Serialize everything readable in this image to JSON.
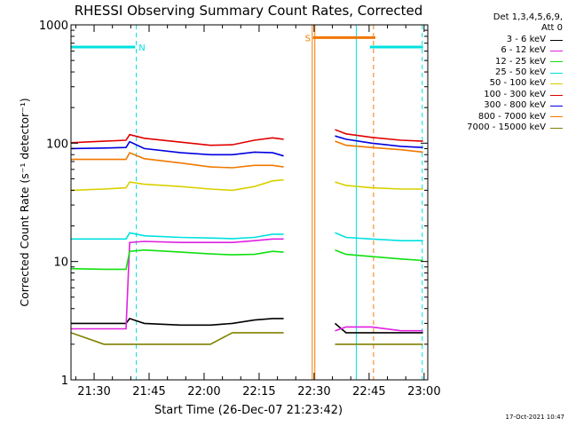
{
  "chart_data": {
    "type": "line",
    "title": "RHESSI Observing Summary Count Rates, Corrected",
    "xlabel": "Start Time (26-Dec-07 21:23:42)",
    "ylabel": "Corrected Count Rate (s⁻¹ detector⁻¹)",
    "yscale": "log",
    "ylim": [
      1,
      1000
    ],
    "xlim": [
      "21:23:42",
      "23:01:00"
    ],
    "x_ticks": [
      "21:30",
      "21:45",
      "22:00",
      "22:15",
      "22:30",
      "22:45",
      "23:00"
    ],
    "y_ticks": [
      "1",
      "10",
      "100",
      "1000"
    ],
    "grid": false,
    "legend_position": "right",
    "legend_header": [
      "Det 1,3,4,5,6,9,",
      "Att 0"
    ],
    "x_minutes": [
      0,
      9,
      15,
      16,
      20,
      30,
      38,
      44,
      50,
      55,
      58,
      67,
      71,
      72,
      75,
      82,
      90,
      96
    ],
    "series": [
      {
        "name": "3 - 6 keV",
        "color": "#000000",
        "values": [
          3.0,
          3.0,
          3.0,
          3.3,
          3.0,
          2.9,
          2.9,
          3.0,
          3.2,
          3.3,
          3.3,
          null,
          null,
          3.0,
          2.5,
          2.5,
          2.5,
          2.5
        ]
      },
      {
        "name": "6 - 12 keV",
        "color": "#e020e0",
        "values": [
          2.7,
          2.7,
          2.7,
          14.5,
          14.8,
          14.5,
          14.5,
          14.5,
          15.0,
          15.5,
          15.5,
          null,
          null,
          2.6,
          2.8,
          2.8,
          2.6,
          2.6
        ]
      },
      {
        "name": "12 - 25 keV",
        "color": "#10e010",
        "values": [
          8.7,
          8.6,
          8.6,
          12.2,
          12.5,
          12.0,
          11.6,
          11.4,
          11.5,
          12.2,
          12.0,
          null,
          null,
          12.5,
          11.5,
          11.0,
          10.5,
          10.2
        ]
      },
      {
        "name": "25 - 50 keV",
        "color": "#00e0e0",
        "values": [
          15.5,
          15.5,
          15.5,
          17.5,
          16.5,
          16.0,
          15.8,
          15.6,
          16.0,
          17.0,
          17.0,
          null,
          null,
          17.5,
          16.0,
          15.5,
          15.0,
          15.0
        ]
      },
      {
        "name": "50 - 100 keV",
        "color": "#d8d000",
        "values": [
          40,
          41,
          42,
          47,
          45,
          43,
          41,
          40,
          43,
          48,
          49,
          null,
          null,
          47,
          44,
          42,
          41,
          41
        ]
      },
      {
        "name": "100 - 300 keV",
        "color": "#e00000",
        "values": [
          101,
          104,
          106,
          118,
          110,
          102,
          96,
          97,
          106,
          111,
          108,
          null,
          null,
          130,
          120,
          112,
          106,
          104
        ]
      },
      {
        "name": "300 - 800 keV",
        "color": "#0000e0",
        "values": [
          90,
          91,
          92,
          103,
          90,
          83,
          80,
          80,
          84,
          83,
          78,
          null,
          null,
          115,
          108,
          100,
          94,
          92
        ]
      },
      {
        "name": "800 - 7000 keV",
        "color": "#f07800",
        "values": [
          73,
          73,
          73,
          83,
          74,
          68,
          63,
          62,
          65,
          65,
          63,
          null,
          null,
          104,
          96,
          92,
          88,
          84
        ]
      },
      {
        "name": "7000 - 15000 keV",
        "color": "#808000",
        "values": [
          2.5,
          2.0,
          2.0,
          2.0,
          2.0,
          2.0,
          2.0,
          2.5,
          2.5,
          2.5,
          2.5,
          null,
          null,
          2.0,
          2.0,
          2.0,
          2.0,
          2.0
        ]
      }
    ],
    "flag_bars": [
      {
        "label": "N",
        "color": "#00e0e0",
        "segments": [
          [
            0,
            17.5
          ],
          [
            81.5,
            96
          ]
        ],
        "value": 650
      },
      {
        "label": "S",
        "color": "#f07800",
        "segments": [
          [
            66,
            83
          ]
        ],
        "value": 780
      }
    ],
    "event_lines": [
      {
        "color": "#00e0e0",
        "style": "dashed",
        "x": 17.8
      },
      {
        "color": "#f07800",
        "style": "solid",
        "x": 65.8
      },
      {
        "color": "#f07800",
        "style": "solid",
        "x": 66.5
      },
      {
        "color": "#00e0e0",
        "style": "solid",
        "x": 77.8
      },
      {
        "color": "#f07800",
        "style": "dashed",
        "x": 82.5
      },
      {
        "color": "#00e0e0",
        "style": "dashed",
        "x": 95.8
      }
    ],
    "timestamp": "17-Oct-2021 10:47"
  }
}
